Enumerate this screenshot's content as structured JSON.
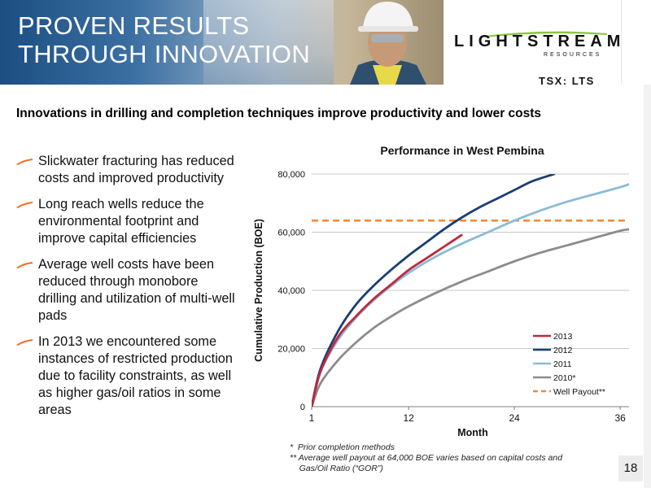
{
  "header": {
    "title": "PROVEN RESULTS\nTHROUGH INNOVATION",
    "logo_text": "LIGHTSTREAM",
    "logo_sub": "RESOURCES",
    "ticker": "TSX: LTS"
  },
  "subtitle": "Innovations in drilling and completion techniques improve productivity and lower costs",
  "bullets": [
    "Slickwater fracturing has reduced costs and improved productivity",
    "Long reach wells reduce the environmental footprint and improve capital efficiencies",
    "Average well costs have been reduced through monobore drilling and utilization of multi-well pads",
    "In 2013 we encountered some instances of restricted production due to facility constraints, as well as higher gas/oil ratios in some areas"
  ],
  "colors": {
    "accent": "#f26b22",
    "header_blue": "#1c4e82"
  },
  "chart_data": {
    "type": "line",
    "title": "Performance in West Pembina",
    "xlabel": "Month",
    "ylabel": "Cumulative Production (BOE)",
    "xlim": [
      1,
      37
    ],
    "ylim": [
      0,
      80000
    ],
    "x_ticks": [
      "1",
      "12",
      "24",
      "36"
    ],
    "y_ticks": [
      "0",
      "20,000",
      "40,000",
      "60,000",
      "80,000"
    ],
    "grid": "horizontal",
    "legend_position": "bottom-right",
    "series": [
      {
        "name": "2013",
        "color": "#c0283c",
        "x": [
          1,
          2,
          4,
          6,
          8,
          10,
          12,
          14,
          16,
          18
        ],
        "y": [
          0,
          12000,
          24000,
          31000,
          37000,
          42000,
          47000,
          51000,
          55000,
          59000
        ]
      },
      {
        "name": "2012",
        "color": "#1a3f73",
        "x": [
          1,
          2,
          4,
          6,
          8,
          10,
          12,
          14,
          16,
          18,
          20,
          22,
          24,
          26,
          28.5
        ],
        "y": [
          0,
          13000,
          26000,
          35000,
          41500,
          47000,
          52000,
          56500,
          61000,
          65000,
          68500,
          71500,
          74500,
          77500,
          80000
        ]
      },
      {
        "name": "2011",
        "color": "#8bbcd4",
        "x": [
          1,
          2,
          4,
          6,
          8,
          10,
          12,
          15,
          18,
          21,
          24,
          27,
          30,
          33,
          36,
          37
        ],
        "y": [
          0,
          12000,
          23000,
          30500,
          36500,
          41500,
          46000,
          51500,
          56000,
          60000,
          64000,
          67500,
          70500,
          73000,
          75500,
          76500
        ]
      },
      {
        "name": "2010*",
        "color": "#8c8c8c",
        "x": [
          1,
          2,
          4,
          6,
          8,
          10,
          12,
          15,
          18,
          21,
          24,
          27,
          30,
          33,
          36,
          37
        ],
        "y": [
          0,
          8000,
          16000,
          22000,
          27000,
          31000,
          34500,
          39000,
          43000,
          46500,
          50000,
          53000,
          55500,
          58000,
          60500,
          61000
        ]
      },
      {
        "name": "Well Payout**",
        "color": "#f08a3a",
        "dashed": true,
        "x": [
          1,
          37
        ],
        "y": [
          64000,
          64000
        ]
      }
    ]
  },
  "footnotes": [
    "*  Prior completion methods",
    "** Average well payout at 64,000 BOE varies based on capital costs and\n    Gas/Oil Ratio (“GOR”)"
  ],
  "page_number": "18"
}
